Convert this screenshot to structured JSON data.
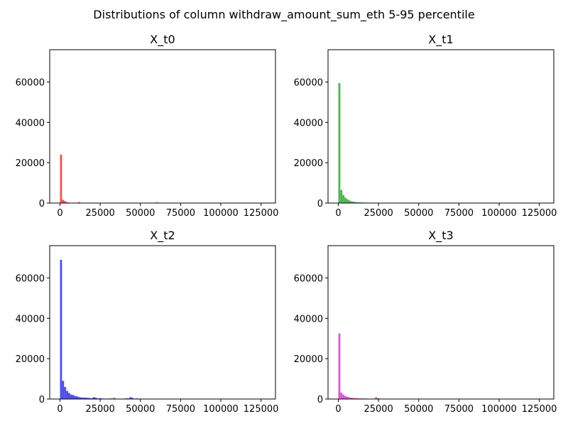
{
  "figure": {
    "suptitle": "Distributions of column withdraw_amount_sum_eth 5-95 percentile"
  },
  "chart_data": [
    {
      "type": "bar",
      "title": "X_t0",
      "color": "#e32b2b",
      "xlim": [
        -6400,
        134000
      ],
      "ylim": [
        0,
        76000
      ],
      "xticks": [
        0,
        25000,
        50000,
        75000,
        100000,
        125000
      ],
      "yticks": [
        0,
        20000,
        40000,
        60000
      ],
      "bin_width": 1270,
      "bins": [
        {
          "x": 0,
          "count": 24000
        },
        {
          "x": 1270,
          "count": 1600
        },
        {
          "x": 2540,
          "count": 1000
        },
        {
          "x": 3810,
          "count": 400
        },
        {
          "x": 5080,
          "count": 200
        },
        {
          "x": 6350,
          "count": 100
        },
        {
          "x": 8890,
          "count": 100
        },
        {
          "x": 11430,
          "count": 500
        },
        {
          "x": 59690,
          "count": 400
        }
      ]
    },
    {
      "type": "bar",
      "title": "X_t1",
      "color": "#2ca02c",
      "xlim": [
        -6400,
        134000
      ],
      "ylim": [
        0,
        76000
      ],
      "xticks": [
        0,
        25000,
        50000,
        75000,
        100000,
        125000
      ],
      "yticks": [
        0,
        20000,
        40000,
        60000
      ],
      "bin_width": 1270,
      "bins": [
        {
          "x": 0,
          "count": 59500
        },
        {
          "x": 1270,
          "count": 6500
        },
        {
          "x": 2540,
          "count": 4000
        },
        {
          "x": 3810,
          "count": 2700
        },
        {
          "x": 5080,
          "count": 1900
        },
        {
          "x": 6350,
          "count": 1300
        },
        {
          "x": 7620,
          "count": 900
        },
        {
          "x": 8890,
          "count": 700
        },
        {
          "x": 10160,
          "count": 500
        },
        {
          "x": 11430,
          "count": 400
        },
        {
          "x": 12700,
          "count": 350
        },
        {
          "x": 13970,
          "count": 300
        },
        {
          "x": 15240,
          "count": 250
        },
        {
          "x": 16510,
          "count": 200
        },
        {
          "x": 17780,
          "count": 200
        },
        {
          "x": 19050,
          "count": 150
        },
        {
          "x": 20320,
          "count": 150
        },
        {
          "x": 21590,
          "count": 200
        }
      ]
    },
    {
      "type": "bar",
      "title": "X_t2",
      "color": "#2424e0",
      "xlim": [
        -6400,
        134000
      ],
      "ylim": [
        0,
        76000
      ],
      "xticks": [
        0,
        25000,
        50000,
        75000,
        100000,
        125000
      ],
      "yticks": [
        0,
        20000,
        40000,
        60000
      ],
      "bin_width": 1270,
      "bins": [
        {
          "x": 0,
          "count": 69000
        },
        {
          "x": 1270,
          "count": 9000
        },
        {
          "x": 2540,
          "count": 6000
        },
        {
          "x": 3810,
          "count": 4000
        },
        {
          "x": 5080,
          "count": 3000
        },
        {
          "x": 6350,
          "count": 2200
        },
        {
          "x": 7620,
          "count": 2000
        },
        {
          "x": 8890,
          "count": 1500
        },
        {
          "x": 10160,
          "count": 1300
        },
        {
          "x": 11430,
          "count": 900
        },
        {
          "x": 12700,
          "count": 800
        },
        {
          "x": 13970,
          "count": 700
        },
        {
          "x": 15240,
          "count": 700
        },
        {
          "x": 16510,
          "count": 600
        },
        {
          "x": 17780,
          "count": 500
        },
        {
          "x": 19050,
          "count": 400
        },
        {
          "x": 20320,
          "count": 900
        },
        {
          "x": 21590,
          "count": 700
        },
        {
          "x": 22860,
          "count": 300
        },
        {
          "x": 24130,
          "count": 400
        },
        {
          "x": 25400,
          "count": 300
        },
        {
          "x": 26670,
          "count": 200
        },
        {
          "x": 27940,
          "count": 200
        },
        {
          "x": 30480,
          "count": 300
        },
        {
          "x": 31750,
          "count": 200
        },
        {
          "x": 33020,
          "count": 500
        },
        {
          "x": 34290,
          "count": 200
        },
        {
          "x": 36830,
          "count": 100
        },
        {
          "x": 40640,
          "count": 400
        },
        {
          "x": 41910,
          "count": 300
        },
        {
          "x": 43180,
          "count": 900
        },
        {
          "x": 44450,
          "count": 600
        },
        {
          "x": 46990,
          "count": 300
        },
        {
          "x": 48260,
          "count": 200
        },
        {
          "x": 49530,
          "count": 100
        }
      ]
    },
    {
      "type": "bar",
      "title": "X_t3",
      "color": "#cc33cc",
      "xlim": [
        -6400,
        134000
      ],
      "ylim": [
        0,
        76000
      ],
      "xticks": [
        0,
        25000,
        50000,
        75000,
        100000,
        125000
      ],
      "yticks": [
        0,
        20000,
        40000,
        60000
      ],
      "bin_width": 1270,
      "bins": [
        {
          "x": 0,
          "count": 32500
        },
        {
          "x": 1270,
          "count": 3200
        },
        {
          "x": 2540,
          "count": 2200
        },
        {
          "x": 3810,
          "count": 1500
        },
        {
          "x": 5080,
          "count": 1100
        },
        {
          "x": 6350,
          "count": 800
        },
        {
          "x": 7620,
          "count": 600
        },
        {
          "x": 8890,
          "count": 500
        },
        {
          "x": 10160,
          "count": 400
        },
        {
          "x": 11430,
          "count": 400
        },
        {
          "x": 12700,
          "count": 300
        },
        {
          "x": 13970,
          "count": 300
        },
        {
          "x": 15240,
          "count": 300
        },
        {
          "x": 16510,
          "count": 200
        },
        {
          "x": 17780,
          "count": 200
        },
        {
          "x": 19050,
          "count": 100
        },
        {
          "x": 20320,
          "count": 100
        },
        {
          "x": 21590,
          "count": 100
        },
        {
          "x": 22860,
          "count": 900
        },
        {
          "x": 24130,
          "count": 400
        }
      ]
    }
  ]
}
